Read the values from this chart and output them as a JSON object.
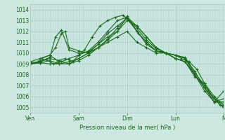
{
  "background_color": "#cce8e0",
  "plot_bg_color": "#cce8e0",
  "grid_color_major": "#aacccc",
  "grid_color_minor": "#bbdddd",
  "line_color": "#1a6b1a",
  "marker_color": "#1a6b1a",
  "xlabel": "Pression niveau de la mer( hPa )",
  "ylim": [
    1004.5,
    1014.5
  ],
  "xlim": [
    0,
    100
  ],
  "yticks": [
    1005,
    1006,
    1007,
    1008,
    1009,
    1010,
    1011,
    1012,
    1013,
    1014
  ],
  "xtick_labels": [
    "Ven",
    "Sam",
    "Dim",
    "Lun",
    "M"
  ],
  "xtick_positions": [
    0,
    25,
    50,
    75,
    100
  ],
  "series": [
    [
      0,
      1009.0,
      4,
      1009.2,
      6,
      1009.5,
      10,
      1009.8,
      14,
      1009.3,
      18,
      1009.5,
      22,
      1009.2,
      25,
      1009.8,
      28,
      1010.3,
      32,
      1011.5,
      36,
      1012.5,
      40,
      1013.0,
      44,
      1013.3,
      48,
      1013.5,
      52,
      1012.8,
      56,
      1011.8,
      60,
      1010.8,
      65,
      1010.2,
      70,
      1010.0,
      75,
      1009.8,
      78,
      1009.5,
      82,
      1009.2,
      86,
      1008.5,
      90,
      1007.2,
      94,
      1006.0,
      98,
      1005.2,
      100,
      1005.0
    ],
    [
      0,
      1009.0,
      5,
      1009.2,
      10,
      1009.6,
      13,
      1011.5,
      16,
      1012.1,
      20,
      1010.3,
      25,
      1010.0,
      30,
      1010.1,
      35,
      1010.8,
      40,
      1011.8,
      45,
      1012.5,
      50,
      1013.2,
      55,
      1012.3,
      60,
      1011.2,
      65,
      1010.4,
      70,
      1010.0,
      75,
      1009.8,
      80,
      1009.5,
      85,
      1008.0,
      90,
      1006.8,
      95,
      1005.8,
      100,
      1005.2
    ],
    [
      0,
      1009.0,
      5,
      1009.1,
      10,
      1009.3,
      15,
      1009.0,
      20,
      1009.2,
      25,
      1009.5,
      30,
      1010.0,
      35,
      1010.8,
      40,
      1011.5,
      45,
      1012.0,
      50,
      1013.0,
      55,
      1012.5,
      60,
      1011.5,
      65,
      1010.5,
      70,
      1010.0,
      75,
      1009.8,
      80,
      1009.6,
      85,
      1008.2,
      90,
      1007.0,
      95,
      1005.8,
      100,
      1005.0
    ],
    [
      0,
      1009.1,
      4,
      1009.2,
      8,
      1009.4,
      12,
      1009.0,
      16,
      1009.2,
      20,
      1009.5,
      25,
      1009.8,
      30,
      1010.2,
      35,
      1011.0,
      40,
      1012.0,
      45,
      1013.0,
      50,
      1013.3,
      55,
      1012.5,
      60,
      1011.5,
      65,
      1010.5,
      70,
      1010.0,
      75,
      1009.8,
      80,
      1009.5,
      85,
      1008.3,
      90,
      1006.8,
      95,
      1005.5,
      100,
      1005.8
    ],
    [
      0,
      1009.0,
      5,
      1009.1,
      10,
      1009.0,
      15,
      1009.0,
      20,
      1009.0,
      25,
      1009.5,
      30,
      1010.0,
      35,
      1010.5,
      40,
      1011.0,
      45,
      1011.5,
      50,
      1012.0,
      55,
      1011.0,
      60,
      1010.5,
      65,
      1010.0,
      70,
      1010.0,
      75,
      1009.5,
      80,
      1009.2,
      85,
      1007.8,
      90,
      1007.2,
      95,
      1006.0,
      100,
      1005.2
    ],
    [
      0,
      1009.0,
      5,
      1009.2,
      10,
      1009.5,
      15,
      1009.3,
      20,
      1009.0,
      25,
      1009.3,
      30,
      1009.8,
      35,
      1010.5,
      40,
      1011.3,
      45,
      1012.3,
      50,
      1013.2,
      55,
      1012.0,
      60,
      1011.0,
      65,
      1010.2,
      70,
      1010.0,
      75,
      1009.5,
      80,
      1009.2,
      85,
      1008.0,
      90,
      1006.8,
      95,
      1005.5,
      100,
      1005.5
    ],
    [
      0,
      1009.2,
      5,
      1009.5,
      10,
      1009.8,
      13,
      1010.5,
      16,
      1011.8,
      18,
      1012.0,
      20,
      1010.5,
      25,
      1010.2,
      30,
      1010.0,
      35,
      1010.5,
      40,
      1011.2,
      45,
      1012.0,
      50,
      1013.4,
      55,
      1012.0,
      60,
      1011.0,
      65,
      1010.2,
      70,
      1010.0,
      75,
      1009.5,
      80,
      1009.2,
      85,
      1008.0,
      90,
      1006.5,
      95,
      1005.5,
      100,
      1006.5
    ]
  ]
}
